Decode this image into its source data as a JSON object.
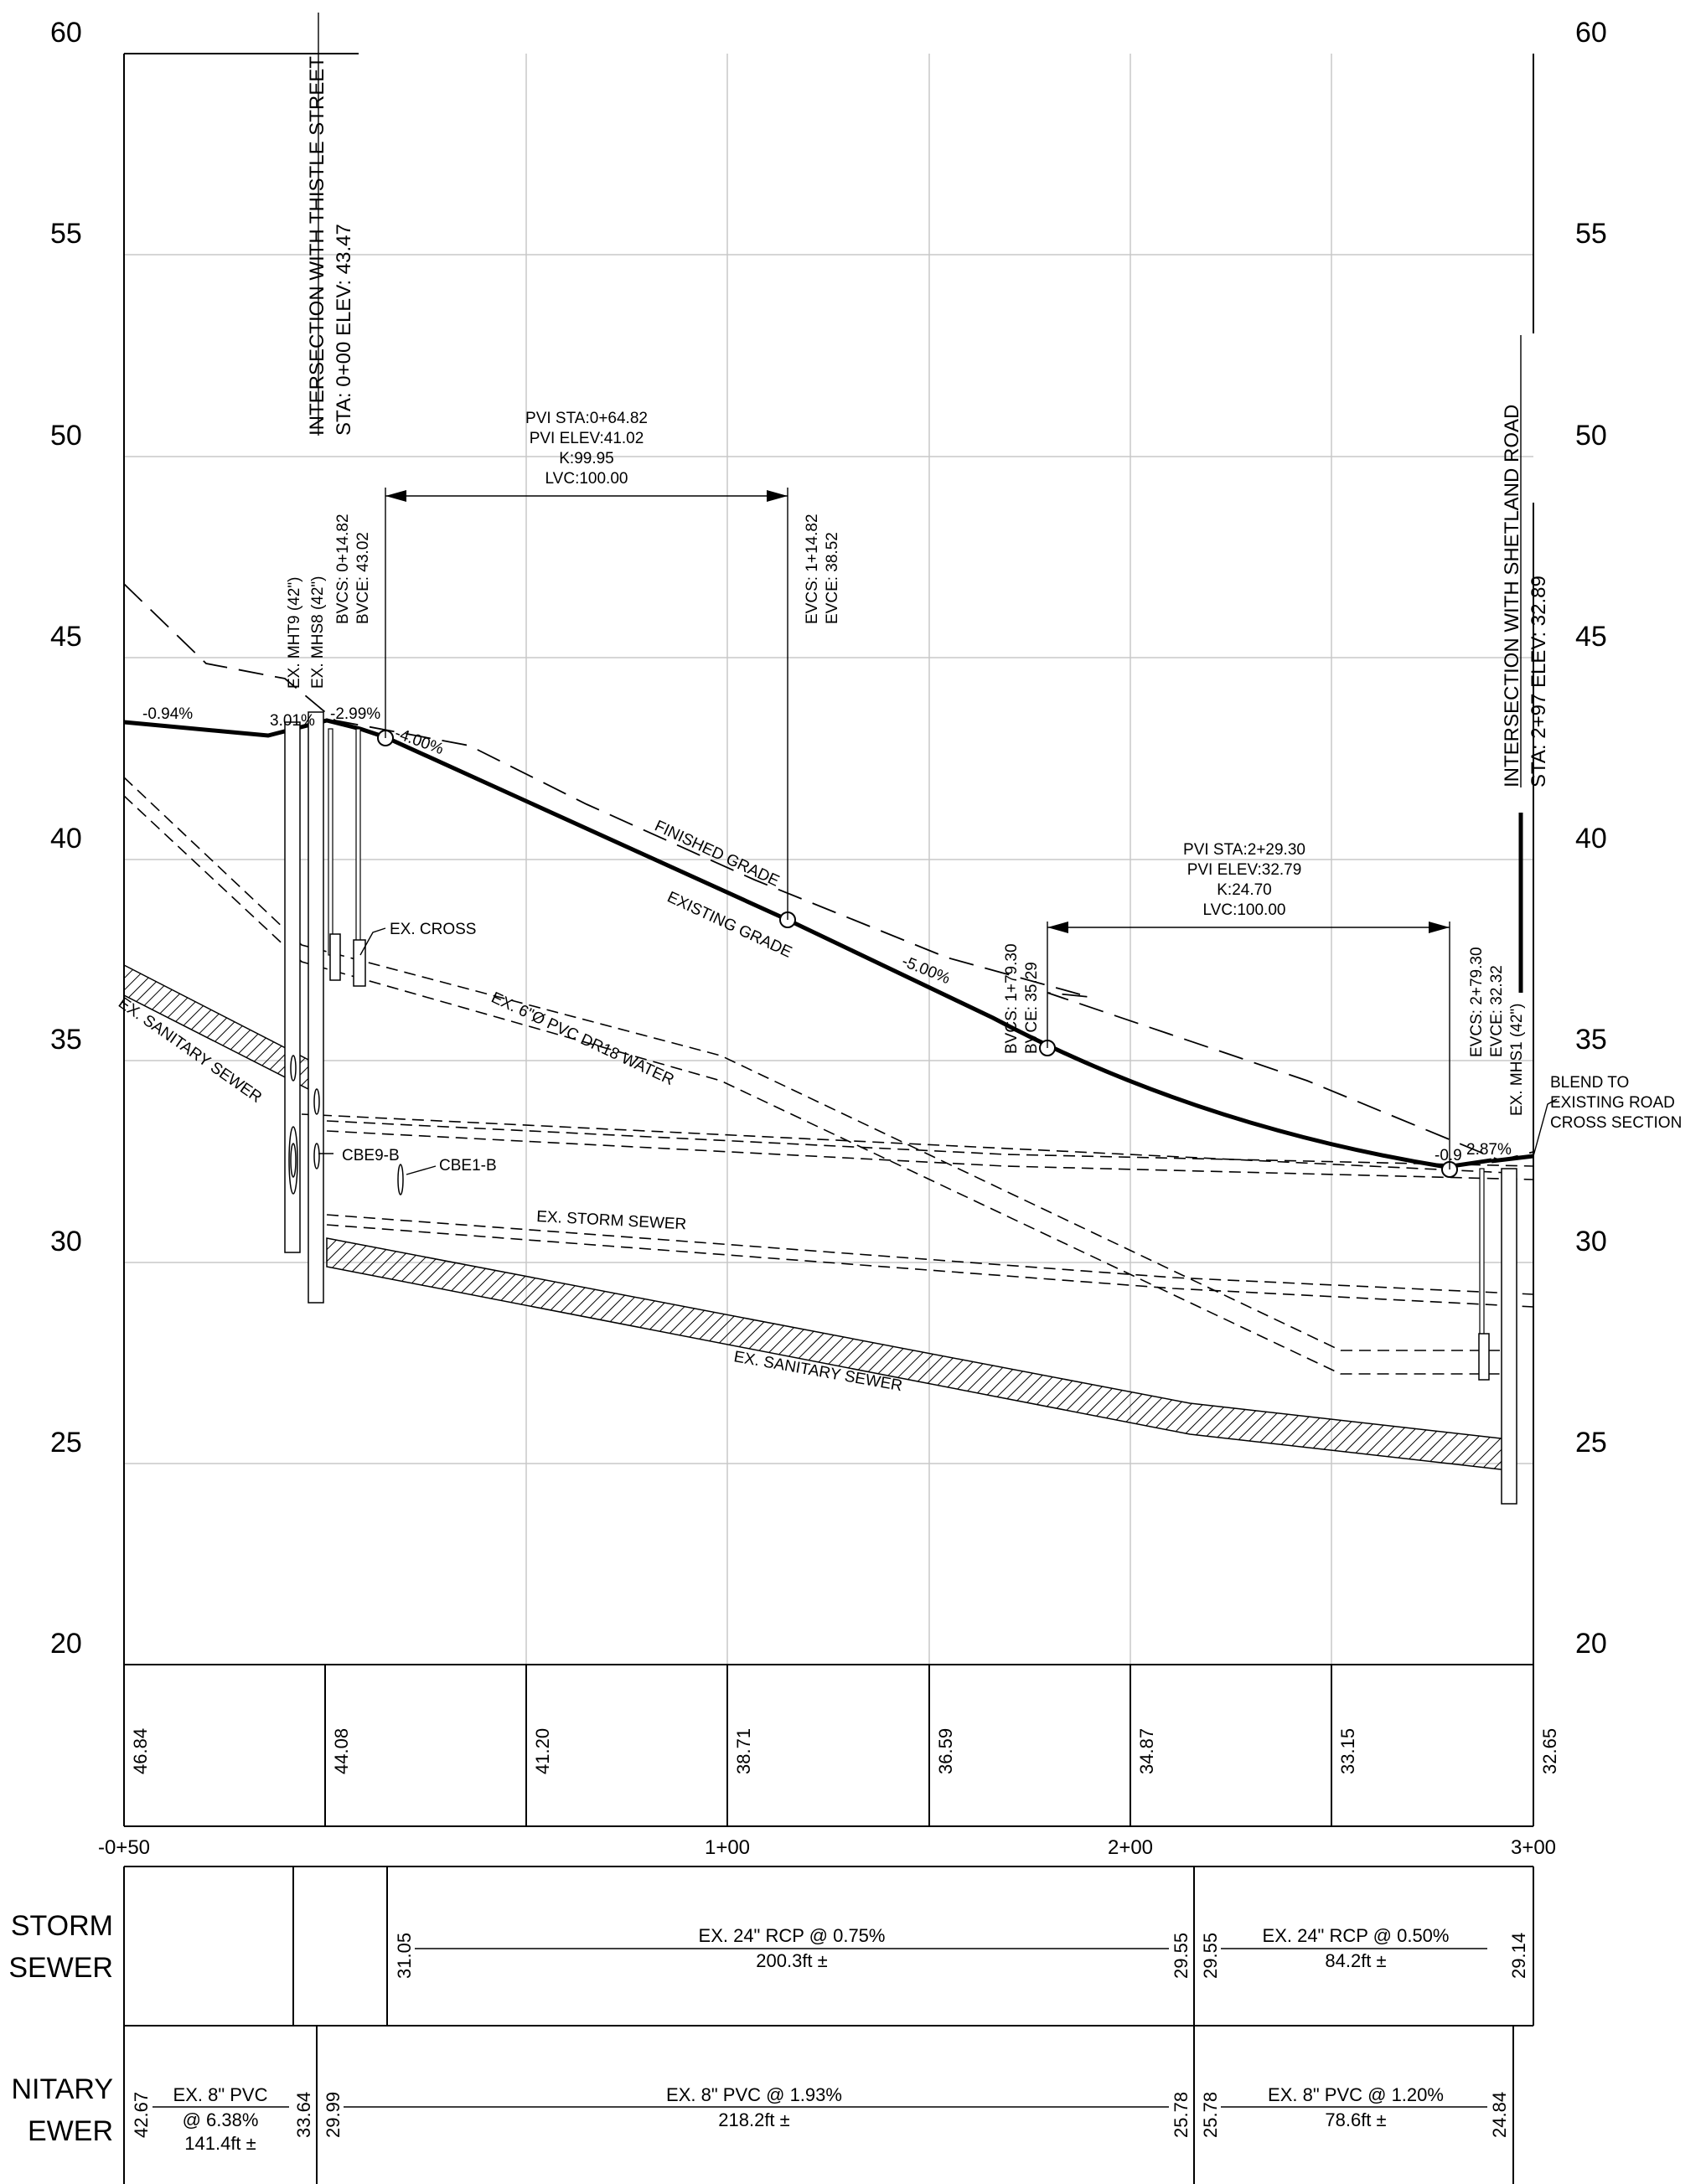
{
  "elevation_axis": {
    "left_labels": [
      "60",
      "55",
      "50",
      "45",
      "40",
      "35",
      "30",
      "25",
      "20"
    ],
    "right_labels": [
      "60",
      "55",
      "50",
      "45",
      "40",
      "35",
      "30",
      "25",
      "20"
    ]
  },
  "station_labels": [
    "-0+50",
    "1+00",
    "2+00",
    "3+00"
  ],
  "ground_elevations": [
    "46.84",
    "44.08",
    "41.20",
    "38.71",
    "36.59",
    "34.87",
    "33.15",
    "32.65"
  ],
  "intersections": {
    "start": {
      "line1": "INTERSECTION WITH THISTLE STREET",
      "line2": "STA: 0+00    ELEV: 43.47"
    },
    "end": {
      "line1": "INTERSECTION WITH SHETLAND ROAD",
      "line2": "STA: 2+97    ELEV: 32.89"
    }
  },
  "vertical_curves": {
    "crest": {
      "pvi": [
        "PVI STA:0+64.82",
        "PVI ELEV:41.02",
        "K:99.95",
        "LVC:100.00"
      ],
      "bvc": [
        "BVCS: 0+14.82",
        "BVCE: 43.02"
      ],
      "evc": [
        "EVCS: 1+14.82",
        "EVCE: 38.52"
      ]
    },
    "sag": {
      "pvi": [
        "PVI STA:2+29.30",
        "PVI ELEV:32.79",
        "K:24.70",
        "LVC:100.00"
      ],
      "bvc": [
        "BVCS: 1+79.30",
        "BVCE: 35.29"
      ],
      "evc": [
        "EVCS: 2+79.30",
        "EVCE: 32.32"
      ]
    }
  },
  "grades": {
    "g1": "-0.94%",
    "g2": "3.01%",
    "g3": "-2.99%",
    "g4": "-4.00%",
    "g5": "-5.00%",
    "g6": "-0.9",
    "g7": "2.87%"
  },
  "annotations": {
    "mht9": "EX. MHT9 (42\")",
    "mhs8": "EX. MHS8 (42\")",
    "mhs1": "EX. MHS1 (42\")",
    "ex_cross": "EX. CROSS",
    "water": "EX. 6\"Ø PVC DR18 WATER",
    "finished_grade": "FINISHED GRADE",
    "existing_grade": "EXISTING GRADE",
    "sanitary_upper": "EX. SANITARY SEWER",
    "sanitary_lower": "EX. SANITARY SEWER",
    "storm": "EX. STORM SEWER",
    "cbe9b": "CBE9-B",
    "cbe1b": "CBE1-B",
    "blend": [
      "BLEND TO",
      "EXISTING ROAD",
      "CROSS SECTION"
    ]
  },
  "storm_sewer_table": {
    "label": [
      "STORM",
      "SEWER"
    ],
    "segments": [
      {
        "inv_in": "31.05",
        "desc": "EX. 24\" RCP @ 0.75%",
        "length": "200.3ft ±",
        "inv_out": "29.55"
      },
      {
        "inv_in": "29.55",
        "desc": "EX. 24\" RCP @ 0.50%",
        "length": "84.2ft ±",
        "inv_out": "29.14"
      }
    ]
  },
  "sanitary_sewer_table": {
    "label": [
      "NITARY",
      "EWER"
    ],
    "segments": [
      {
        "inv_in": "42.67",
        "desc": "EX. 8\" PVC",
        "desc2": "@ 6.38%",
        "length": "141.4ft ±",
        "inv_out": "33.64"
      },
      {
        "inv_in": "29.99",
        "desc": "EX. 8\" PVC @ 1.93%",
        "length": "218.2ft ±",
        "inv_out": "25.78"
      },
      {
        "inv_in": "25.78",
        "desc": "EX. 8\" PVC @ 1.20%",
        "length": "78.6ft ±",
        "inv_out": "24.84"
      }
    ]
  }
}
